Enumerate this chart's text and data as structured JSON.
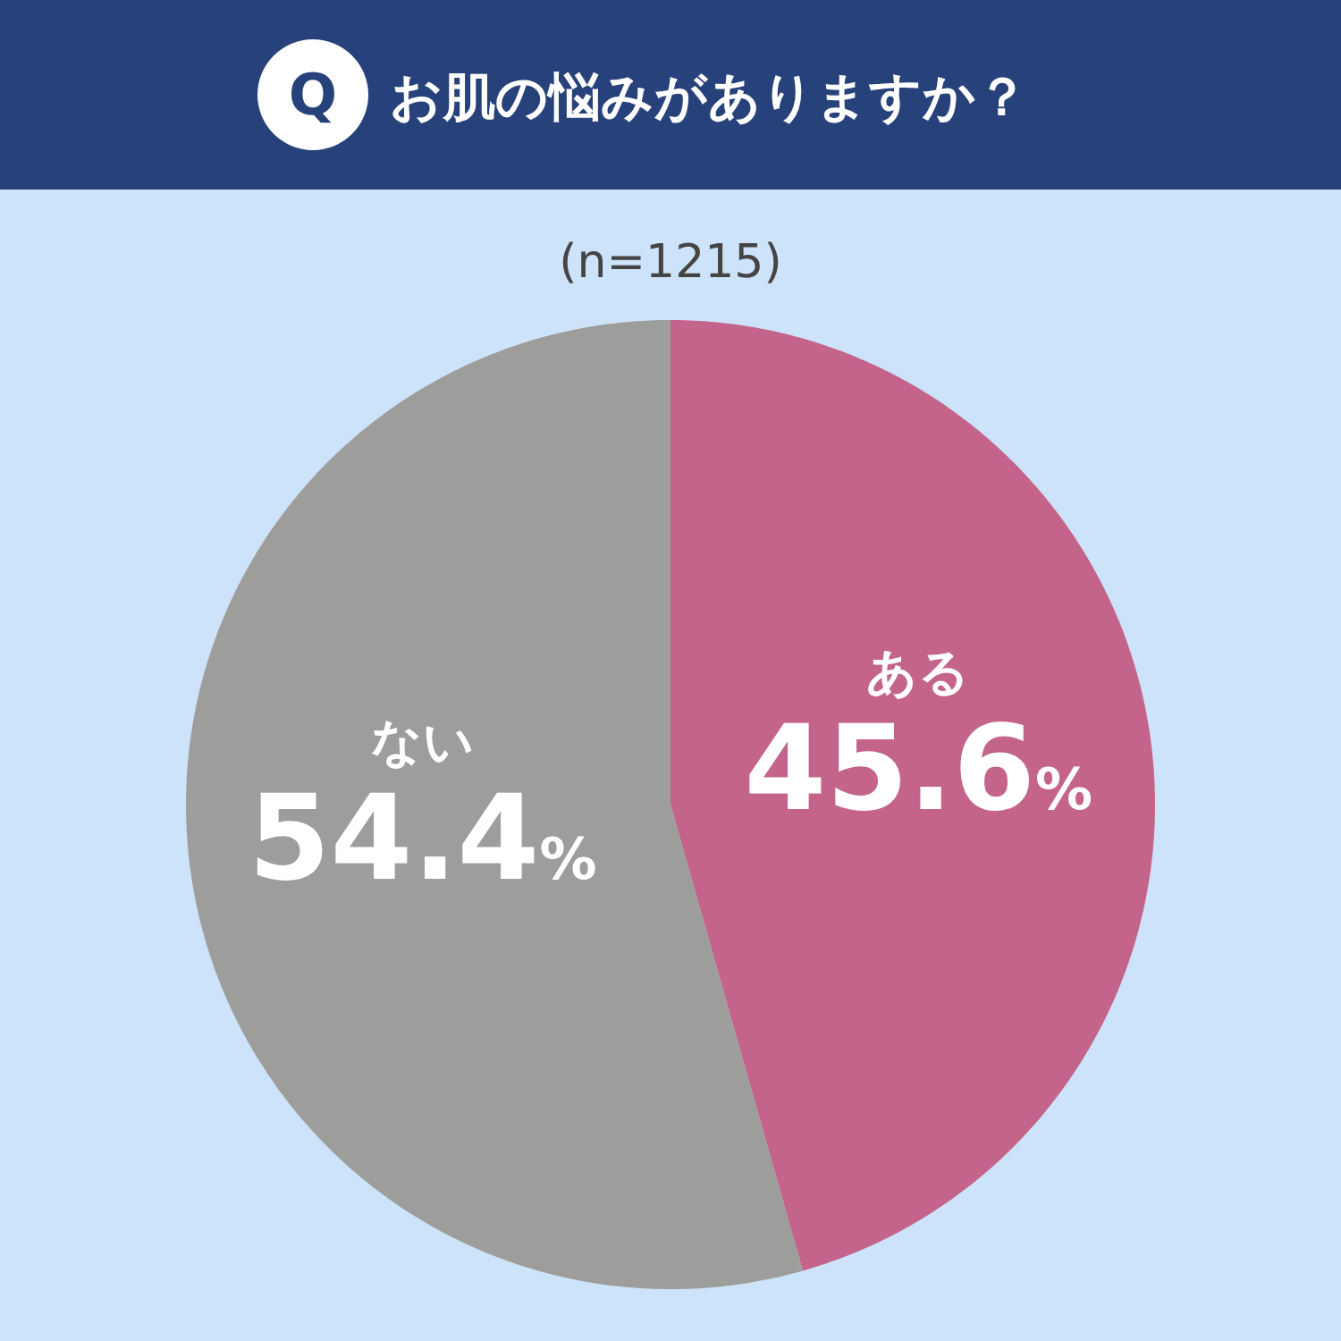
{
  "chart_data": {
    "type": "pie",
    "title": "お肌の悩みがありますか？",
    "subtitle": "(n=1215)",
    "categories": [
      "ある",
      "ない"
    ],
    "values": [
      45.6,
      54.4
    ],
    "colors": [
      "#c4648a",
      "#9d9d9b"
    ],
    "value_labels": [
      "45.6%",
      "54.4%"
    ],
    "annotations": [
      "Q"
    ]
  }
}
